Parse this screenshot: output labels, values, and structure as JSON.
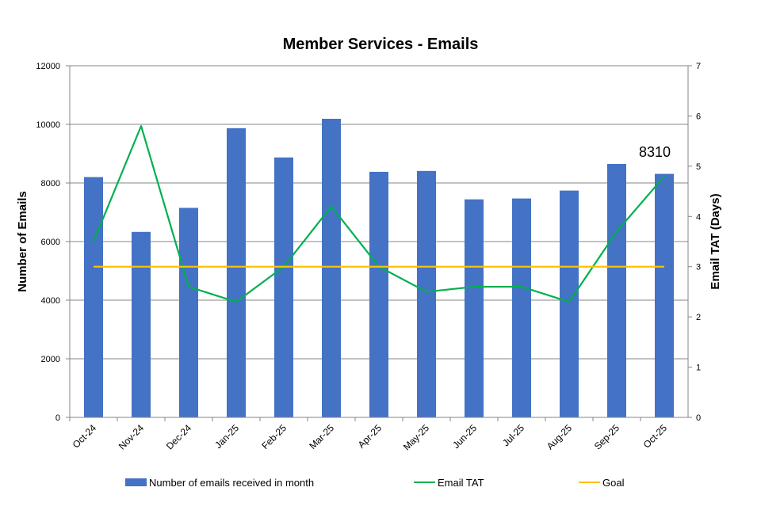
{
  "chart_data": {
    "type": "bar+line",
    "title": "Member Services - Emails",
    "ylabel": "Number of Emails",
    "y2label": "Email TAT (Days)",
    "categories": [
      "Oct-24",
      "Nov-24",
      "Dec-24",
      "Jan-25",
      "Feb-25",
      "Mar-25",
      "Apr-25",
      "May-25",
      "Jun-25",
      "Jul-25",
      "Aug-25",
      "Sep-25",
      "Oct-25"
    ],
    "ylim": [
      0,
      12000
    ],
    "yticks": [
      0,
      2000,
      4000,
      6000,
      8000,
      10000,
      12000
    ],
    "y2lim": [
      0,
      7
    ],
    "y2ticks": [
      0,
      1,
      2,
      3,
      4,
      5,
      6,
      7
    ],
    "grid": true,
    "legend_position": "bottom",
    "series": [
      {
        "name": "Number of emails received in month",
        "type": "bar",
        "axis": "left",
        "color": "#4472C4",
        "values": [
          8200,
          6330,
          7150,
          9870,
          8870,
          10190,
          8380,
          8410,
          7440,
          7470,
          7740,
          8650,
          8310
        ]
      },
      {
        "name": "Email TAT",
        "type": "line",
        "axis": "right",
        "color": "#00B050",
        "values": [
          3.5,
          5.8,
          2.6,
          2.3,
          3.0,
          4.2,
          3.0,
          2.5,
          2.6,
          2.6,
          2.3,
          3.7,
          4.8
        ]
      },
      {
        "name": "Goal",
        "type": "line",
        "axis": "right",
        "color": "#FFC000",
        "values": [
          3,
          3,
          3,
          3,
          3,
          3,
          3,
          3,
          3,
          3,
          3,
          3,
          3
        ]
      }
    ],
    "data_labels": [
      {
        "category": "Oct-25",
        "series": "Number of emails received in month",
        "text": "8310"
      }
    ]
  }
}
